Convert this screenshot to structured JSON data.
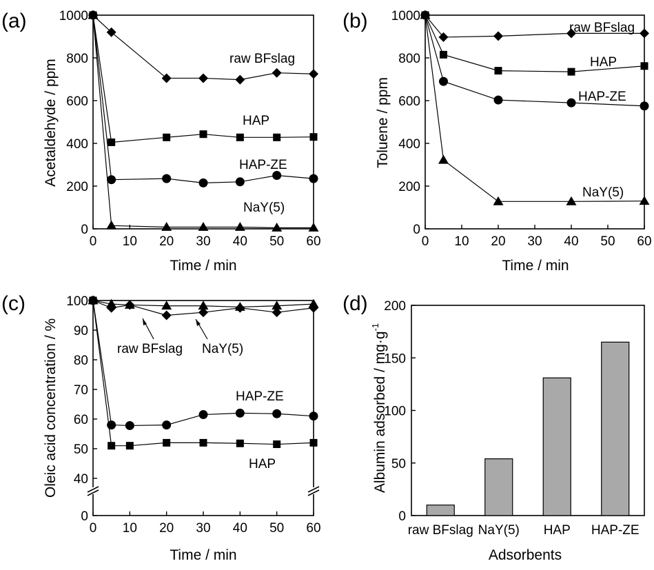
{
  "chart_data": [
    {
      "type": "line",
      "panel": "(a)",
      "xlabel": "Time / min",
      "ylabel": "Acetaldehyde / ppm",
      "xlim": [
        0,
        60
      ],
      "ylim": [
        0,
        1000
      ],
      "xticks": [
        "0",
        "10",
        "20",
        "30",
        "40",
        "50",
        "60"
      ],
      "yticks": [
        "0",
        "200",
        "400",
        "600",
        "800",
        "1000"
      ],
      "grid": false,
      "series": [
        {
          "name": "raw BFslag",
          "marker": "diamond",
          "x": [
            0,
            5,
            20,
            30,
            40,
            50,
            60
          ],
          "y": [
            1000,
            920,
            705,
            705,
            698,
            730,
            725
          ]
        },
        {
          "name": "HAP",
          "marker": "square",
          "x": [
            0,
            5,
            20,
            30,
            40,
            50,
            60
          ],
          "y": [
            1000,
            405,
            428,
            443,
            428,
            428,
            430
          ]
        },
        {
          "name": "HAP-ZE",
          "marker": "circle",
          "x": [
            0,
            5,
            20,
            30,
            40,
            50,
            60
          ],
          "y": [
            1000,
            230,
            235,
            215,
            220,
            250,
            235
          ]
        },
        {
          "name": "NaY(5)",
          "marker": "triangle",
          "x": [
            0,
            5,
            20,
            30,
            40,
            50,
            60
          ],
          "y": [
            1000,
            15,
            8,
            8,
            8,
            5,
            5
          ]
        }
      ]
    },
    {
      "type": "line",
      "panel": "(b)",
      "xlabel": "Time / min",
      "ylabel": "Toluene / ppm",
      "xlim": [
        0,
        60
      ],
      "ylim": [
        0,
        1000
      ],
      "xticks": [
        "0",
        "10",
        "20",
        "30",
        "40",
        "50",
        "60"
      ],
      "yticks": [
        "0",
        "200",
        "400",
        "600",
        "800",
        "1000"
      ],
      "grid": false,
      "series": [
        {
          "name": "raw BFslag",
          "marker": "diamond",
          "x": [
            0,
            5,
            20,
            40,
            60
          ],
          "y": [
            1000,
            897,
            902,
            915,
            915
          ]
        },
        {
          "name": "HAP",
          "marker": "square",
          "x": [
            0,
            5,
            20,
            40,
            60
          ],
          "y": [
            1000,
            815,
            740,
            735,
            762
          ]
        },
        {
          "name": "HAP-ZE",
          "marker": "circle",
          "x": [
            0,
            5,
            20,
            40,
            60
          ],
          "y": [
            1000,
            690,
            603,
            590,
            575
          ]
        },
        {
          "name": "NaY(5)",
          "marker": "triangle",
          "x": [
            0,
            5,
            20,
            40,
            60
          ],
          "y": [
            1000,
            322,
            128,
            128,
            130
          ]
        }
      ]
    },
    {
      "type": "line",
      "panel": "(c)",
      "xlabel": "Time / min",
      "ylabel": "Oleic acid concentration / %",
      "xlim": [
        0,
        60
      ],
      "ylim": [
        0,
        100
      ],
      "axis_break": true,
      "xticks": [
        "0",
        "10",
        "20",
        "30",
        "40",
        "50",
        "60"
      ],
      "yticks": [
        "0",
        "40",
        "50",
        "60",
        "70",
        "80",
        "90",
        "100"
      ],
      "grid": false,
      "series": [
        {
          "name": "raw BFslag",
          "marker": "diamond",
          "x": [
            0,
            5,
            10,
            20,
            30,
            40,
            50,
            60
          ],
          "y": [
            100,
            97.5,
            98.5,
            95,
            96,
            97.5,
            96,
            97.5
          ]
        },
        {
          "name": "NaY(5)",
          "marker": "triangle",
          "x": [
            0,
            5,
            10,
            20,
            30,
            40,
            50,
            60
          ],
          "y": [
            100,
            98.8,
            98.5,
            98.2,
            98.2,
            97.8,
            98.2,
            98.8
          ]
        },
        {
          "name": "HAP-ZE",
          "marker": "circle",
          "x": [
            0,
            5,
            10,
            20,
            30,
            40,
            50,
            60
          ],
          "y": [
            100,
            58,
            57.8,
            58,
            61.5,
            62,
            61.8,
            61
          ]
        },
        {
          "name": "HAP",
          "marker": "square",
          "x": [
            0,
            5,
            10,
            20,
            30,
            40,
            50,
            60
          ],
          "y": [
            100,
            51,
            51,
            52,
            52,
            51.8,
            51.5,
            52
          ]
        }
      ]
    },
    {
      "type": "bar",
      "panel": "(d)",
      "xlabel": "Adsorbents",
      "ylabel": "Albumin adsorbed / mg·g",
      "ylabel_sup": "-1",
      "categories": [
        "raw BFslag",
        "NaY(5)",
        "HAP",
        "HAP-ZE"
      ],
      "values": [
        10,
        54,
        131,
        165
      ],
      "ylim": [
        0,
        200
      ],
      "yticks": [
        "0",
        "50",
        "100",
        "150",
        "200"
      ],
      "bar_color": "#a9a9a9",
      "grid": false
    }
  ]
}
